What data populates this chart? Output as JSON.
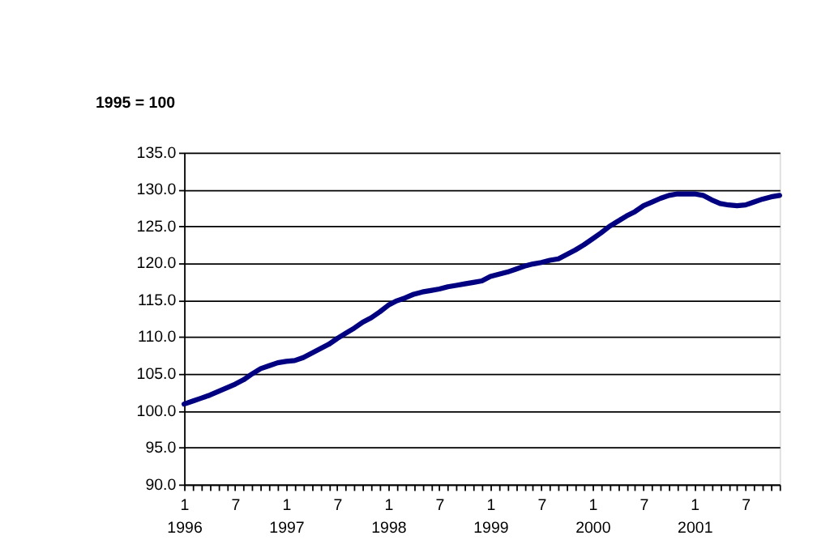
{
  "chart_data": {
    "type": "line",
    "ylabel": "1995 = 100",
    "categories": [
      "1\n1996",
      null,
      null,
      null,
      null,
      null,
      "7",
      null,
      null,
      null,
      null,
      null,
      "1\n1997",
      null,
      null,
      null,
      null,
      null,
      "7",
      null,
      null,
      null,
      null,
      null,
      "1\n1998",
      null,
      null,
      null,
      null,
      null,
      "7",
      null,
      null,
      null,
      null,
      null,
      "1\n1999",
      null,
      null,
      null,
      null,
      null,
      "7",
      null,
      null,
      null,
      null,
      null,
      "1\n2000",
      null,
      null,
      null,
      null,
      null,
      "7",
      null,
      null,
      null,
      null,
      null,
      "1\n2001",
      null,
      null,
      null,
      null,
      null,
      "7",
      null,
      null,
      null,
      null
    ],
    "series": [
      {
        "color": "#000080",
        "values": [
          100.9,
          101.3,
          101.7,
          102.1,
          102.6,
          103.1,
          103.6,
          104.2,
          105.0,
          105.7,
          106.1,
          106.5,
          106.7,
          106.8,
          107.2,
          107.8,
          108.4,
          109.0,
          109.8,
          110.5,
          111.2,
          112.0,
          112.6,
          113.4,
          114.3,
          114.9,
          115.3,
          115.8,
          116.1,
          116.3,
          116.5,
          116.8,
          117.0,
          117.2,
          117.4,
          117.6,
          118.2,
          118.5,
          118.8,
          119.2,
          119.6,
          119.9,
          120.1,
          120.4,
          120.6,
          121.2,
          121.8,
          122.5,
          123.3,
          124.1,
          125.0,
          125.7,
          126.4,
          127.0,
          127.8,
          128.3,
          128.8,
          129.2,
          129.4,
          129.4,
          129.4,
          129.2,
          128.6,
          128.1,
          127.9,
          127.8,
          127.9,
          128.3,
          128.7,
          129.0,
          129.2
        ]
      }
    ],
    "ylim": [
      90.0,
      135.0
    ],
    "yticks": [
      {
        "value": 90,
        "label": "90.0"
      },
      {
        "value": 95,
        "label": "95.0"
      },
      {
        "value": 100,
        "label": "100.0"
      },
      {
        "value": 105,
        "label": "105.0"
      },
      {
        "value": 110,
        "label": "110.0"
      },
      {
        "value": 115,
        "label": "115.0"
      },
      {
        "value": 120,
        "label": "120.0"
      },
      {
        "value": 125,
        "label": "125.0"
      },
      {
        "value": 130,
        "label": "130.0"
      },
      {
        "value": 135,
        "label": "135.0"
      }
    ],
    "grid": "y",
    "marker": "none",
    "line_style": "solid"
  }
}
